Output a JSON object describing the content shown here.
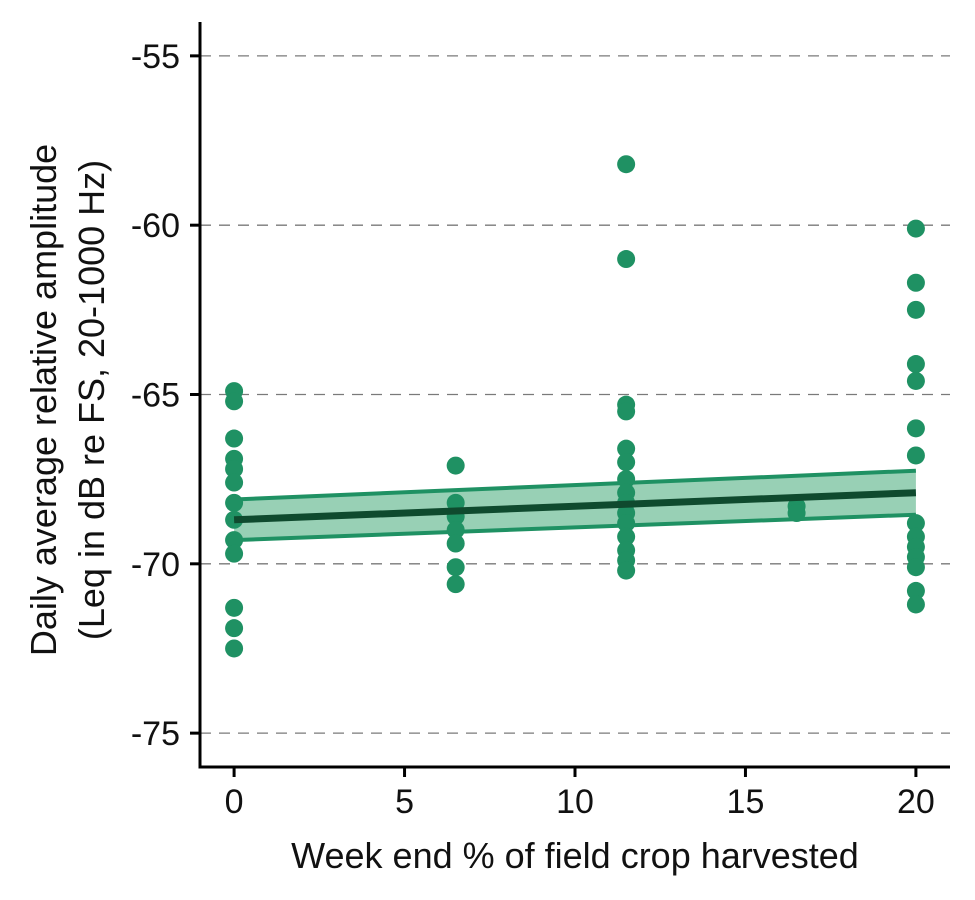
{
  "chart_data": {
    "type": "scatter",
    "title": "",
    "xlabel": "Week end % of field crop harvested",
    "ylabel_lines": [
      "Daily average relative amplitude",
      "(Leq in dB re FS, 20-1000 Hz)"
    ],
    "xlim": [
      -1,
      21
    ],
    "ylim": [
      -76,
      -54
    ],
    "x_ticks": [
      0,
      5,
      10,
      15,
      20
    ],
    "y_ticks": [
      -55,
      -60,
      -65,
      -70,
      -75
    ],
    "grid": "horizontal dashed",
    "legend": "none",
    "colors": {
      "points": "#1f9163",
      "band_fill": "#92cdb1",
      "band_edge": "#1f9163",
      "fit_line": "#0f4a2e",
      "axis": "#000000",
      "grid": "#7a7a7a"
    },
    "series": [
      {
        "values": [
          {
            "x": 0,
            "y": -64.9
          },
          {
            "x": 0,
            "y": -65.2
          },
          {
            "x": 0,
            "y": -66.3
          },
          {
            "x": 0,
            "y": -66.9
          },
          {
            "x": 0,
            "y": -67.2
          },
          {
            "x": 0,
            "y": -67.6
          },
          {
            "x": 0,
            "y": -68.2
          },
          {
            "x": 0,
            "y": -68.7
          },
          {
            "x": 0,
            "y": -69.3
          },
          {
            "x": 0,
            "y": -69.7
          },
          {
            "x": 0,
            "y": -71.3
          },
          {
            "x": 0,
            "y": -71.9
          },
          {
            "x": 0,
            "y": -72.5
          },
          {
            "x": 6.5,
            "y": -67.1
          },
          {
            "x": 6.5,
            "y": -68.2
          },
          {
            "x": 6.5,
            "y": -68.6
          },
          {
            "x": 6.5,
            "y": -69.0
          },
          {
            "x": 6.5,
            "y": -69.4
          },
          {
            "x": 6.5,
            "y": -70.1
          },
          {
            "x": 6.5,
            "y": -70.6
          },
          {
            "x": 11.5,
            "y": -58.2
          },
          {
            "x": 11.5,
            "y": -61.0
          },
          {
            "x": 11.5,
            "y": -65.3
          },
          {
            "x": 11.5,
            "y": -65.5
          },
          {
            "x": 11.5,
            "y": -66.6
          },
          {
            "x": 11.5,
            "y": -67.0
          },
          {
            "x": 11.5,
            "y": -67.5
          },
          {
            "x": 11.5,
            "y": -67.9
          },
          {
            "x": 11.5,
            "y": -68.2
          },
          {
            "x": 11.5,
            "y": -68.5
          },
          {
            "x": 11.5,
            "y": -68.8
          },
          {
            "x": 11.5,
            "y": -69.2
          },
          {
            "x": 11.5,
            "y": -69.6
          },
          {
            "x": 11.5,
            "y": -69.9
          },
          {
            "x": 11.5,
            "y": -70.2
          },
          {
            "x": 16.5,
            "y": -68.3
          },
          {
            "x": 16.5,
            "y": -68.5
          },
          {
            "x": 20,
            "y": -60.1
          },
          {
            "x": 20,
            "y": -61.7
          },
          {
            "x": 20,
            "y": -62.5
          },
          {
            "x": 20,
            "y": -64.1
          },
          {
            "x": 20,
            "y": -64.6
          },
          {
            "x": 20,
            "y": -66.0
          },
          {
            "x": 20,
            "y": -66.8
          },
          {
            "x": 20,
            "y": -68.8
          },
          {
            "x": 20,
            "y": -69.2
          },
          {
            "x": 20,
            "y": -69.5
          },
          {
            "x": 20,
            "y": -69.8
          },
          {
            "x": 20,
            "y": -70.1
          },
          {
            "x": 20,
            "y": -70.8
          },
          {
            "x": 20,
            "y": -71.2
          }
        ]
      }
    ],
    "fit": {
      "x": [
        0,
        20
      ],
      "y": [
        -68.7,
        -67.9
      ],
      "ci_lower": [
        -69.3,
        -68.55
      ],
      "ci_upper": [
        -68.1,
        -67.25
      ]
    }
  }
}
